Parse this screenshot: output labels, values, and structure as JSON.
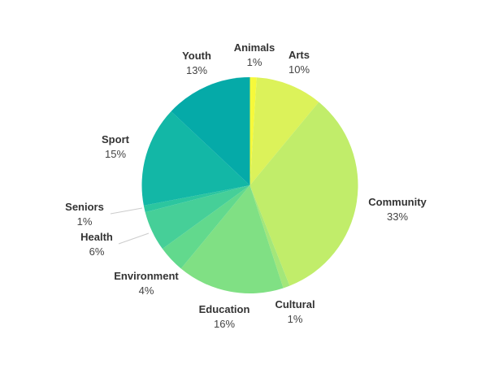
{
  "chart_data": {
    "type": "pie",
    "title": "",
    "start_angle_deg": 0,
    "direction": "clockwise",
    "slices": [
      {
        "label": "Animals",
        "value": 1,
        "pct_label": "1%",
        "color": "#f6f93b"
      },
      {
        "label": "Arts",
        "value": 10,
        "pct_label": "10%",
        "color": "#dcf25a"
      },
      {
        "label": "Community",
        "value": 33,
        "pct_label": "33%",
        "color": "#c1ed6a"
      },
      {
        "label": "Cultural",
        "value": 1,
        "pct_label": "1%",
        "color": "#a3e77a"
      },
      {
        "label": "Education",
        "value": 16,
        "pct_label": "16%",
        "color": "#80e084"
      },
      {
        "label": "Environment",
        "value": 4,
        "pct_label": "4%",
        "color": "#62d98d"
      },
      {
        "label": "Health",
        "value": 6,
        "pct_label": "6%",
        "color": "#46cf98"
      },
      {
        "label": "Seniors",
        "value": 1,
        "pct_label": "1%",
        "color": "#2cc69f"
      },
      {
        "label": "Sport",
        "value": 15,
        "pct_label": "15%",
        "color": "#13b7a6"
      },
      {
        "label": "Youth",
        "value": 13,
        "pct_label": "13%",
        "color": "#05aaa8"
      }
    ]
  }
}
